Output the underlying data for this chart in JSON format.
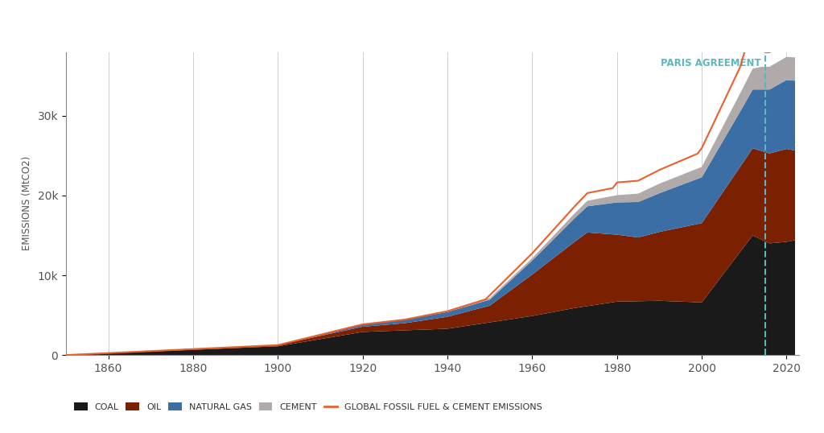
{
  "title": "",
  "ylabel": "EMISSIONS (MtCO2)",
  "paris_year": 2015,
  "paris_label": "PARIS AGREEMENT",
  "colors": {
    "coal": "#1a1a1a",
    "oil": "#7B2000",
    "natural_gas": "#3A6EA5",
    "cement": "#B0AAAA",
    "total_line": "#E8602C"
  },
  "background": "#FFFFFF",
  "legend_labels": [
    "COAL",
    "OIL",
    "NATURAL GAS",
    "CEMENT",
    "GLOBAL FOSSIL FUEL & CEMENT EMISSIONS"
  ],
  "paris_color": "#5BB8C1",
  "yticks": [
    0,
    10000,
    20000,
    30000
  ],
  "ytick_labels": [
    "0",
    "10k",
    "20k",
    "30k"
  ],
  "xlim": [
    1850,
    2023
  ],
  "ylim": [
    0,
    38000
  ]
}
